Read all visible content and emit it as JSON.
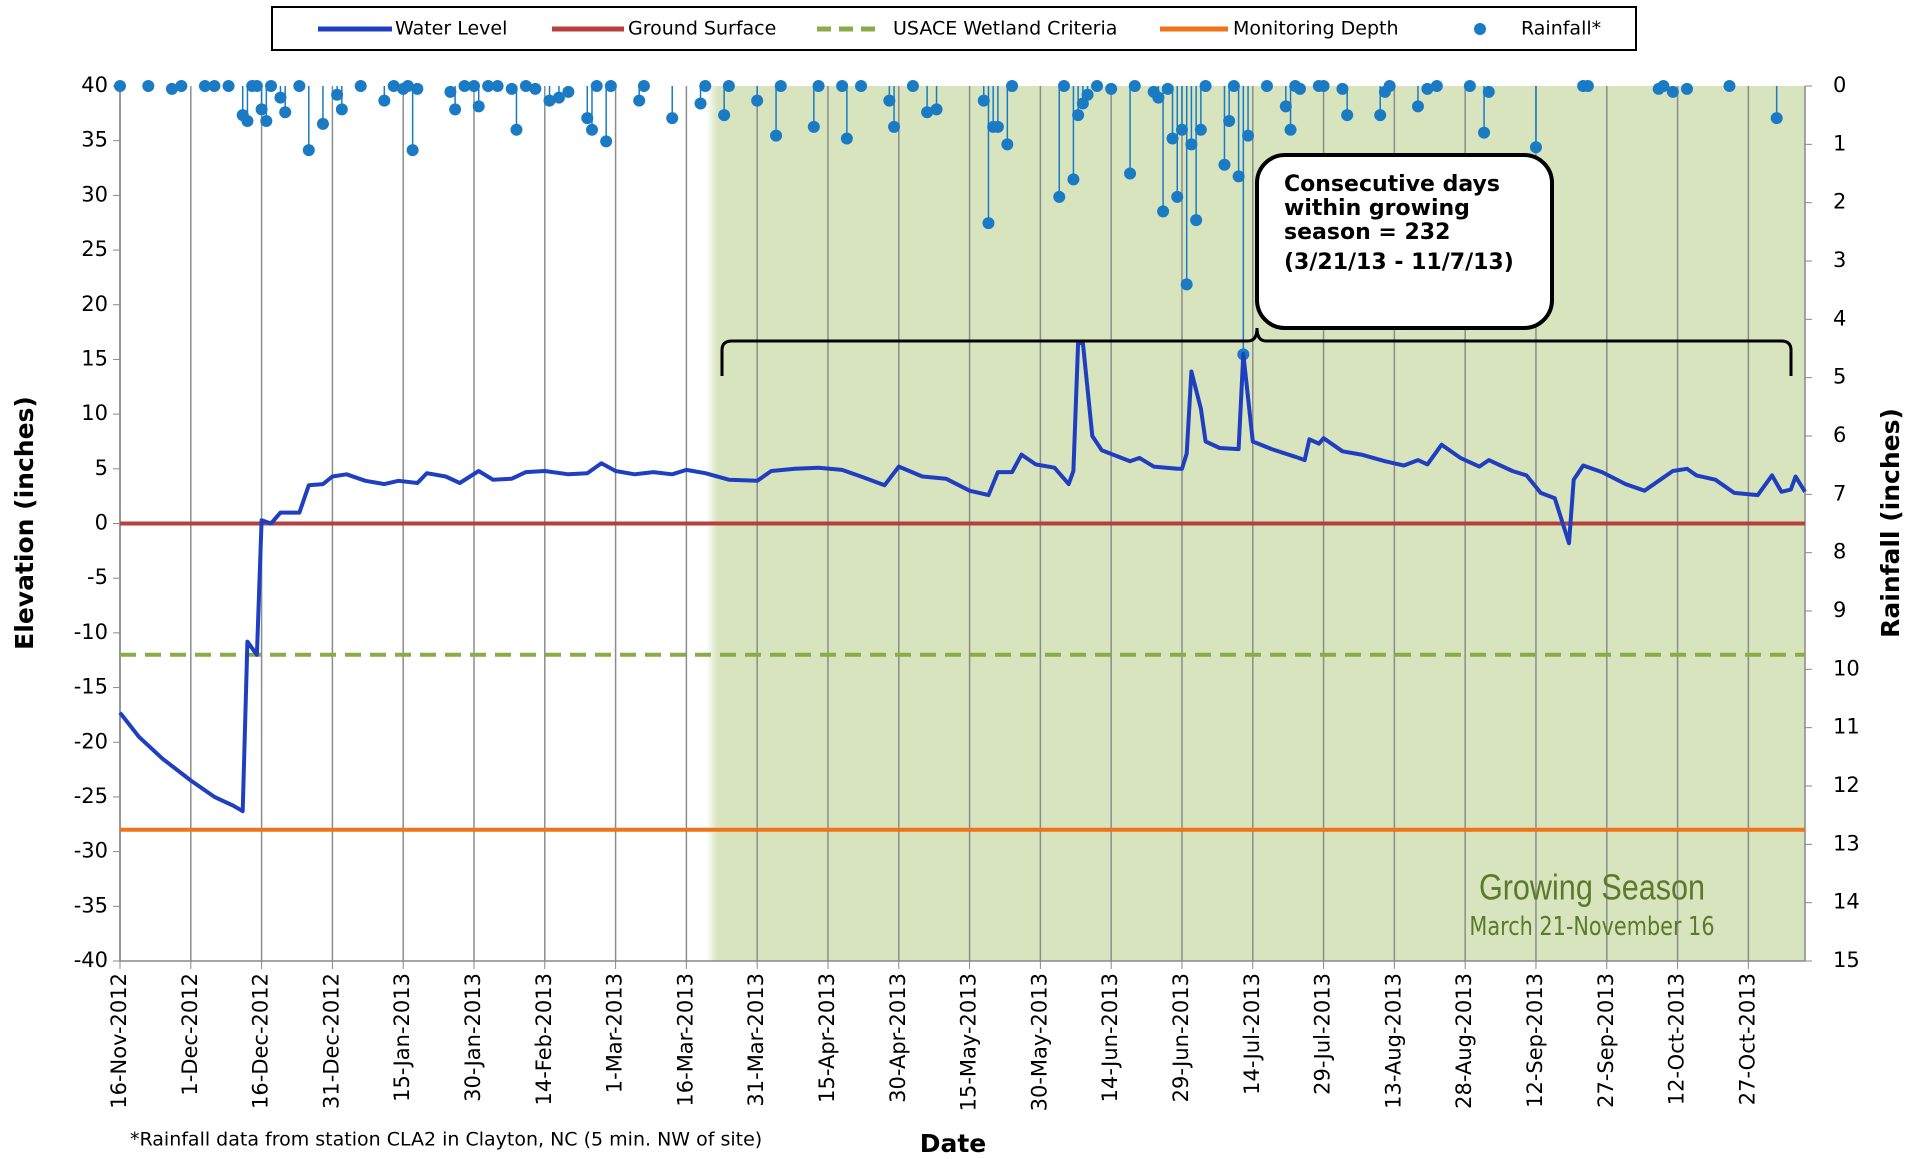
{
  "chart_data": {
    "type": "line",
    "xlabel": "Date",
    "ylabel": "Elevation (inches)",
    "y2label": "Rainfall (inches)",
    "footnote": "*Rainfall data  from station CLA2 in Clayton, NC (5 min. NW of site)",
    "annotation": [
      "Consecutive days",
      "within growing",
      "season = 232",
      "(3/21/13 - 11/7/13)"
    ],
    "season_label": "Growing Season",
    "season_sublabel": "March 21-November 16",
    "xlim": [
      "2012-11-16",
      "2013-11-08"
    ],
    "xticks": [
      {
        "value": "2012-11-16",
        "label": "16-Nov-2012"
      },
      {
        "value": "2012-12-01",
        "label": "1-Dec-2012"
      },
      {
        "value": "2012-12-16",
        "label": "16-Dec-2012"
      },
      {
        "value": "2012-12-31",
        "label": "31-Dec-2012"
      },
      {
        "value": "2013-01-15",
        "label": "15-Jan-2013"
      },
      {
        "value": "2013-01-30",
        "label": "30-Jan-2013"
      },
      {
        "value": "2013-02-14",
        "label": "14-Feb-2013"
      },
      {
        "value": "2013-03-01",
        "label": "1-Mar-2013"
      },
      {
        "value": "2013-03-16",
        "label": "16-Mar-2013"
      },
      {
        "value": "2013-03-31",
        "label": "31-Mar-2013"
      },
      {
        "value": "2013-04-15",
        "label": "15-Apr-2013"
      },
      {
        "value": "2013-04-30",
        "label": "30-Apr-2013"
      },
      {
        "value": "2013-05-15",
        "label": "15-May-2013"
      },
      {
        "value": "2013-05-30",
        "label": "30-May-2013"
      },
      {
        "value": "2013-06-14",
        "label": "14-Jun-2013"
      },
      {
        "value": "2013-06-29",
        "label": "29-Jun-2013"
      },
      {
        "value": "2013-07-14",
        "label": "14-Jul-2013"
      },
      {
        "value": "2013-07-29",
        "label": "29-Jul-2013"
      },
      {
        "value": "2013-08-13",
        "label": "13-Aug-2013"
      },
      {
        "value": "2013-08-28",
        "label": "28-Aug-2013"
      },
      {
        "value": "2013-09-12",
        "label": "12-Sep-2013"
      },
      {
        "value": "2013-09-27",
        "label": "27-Sep-2013"
      },
      {
        "value": "2013-10-12",
        "label": "12-Oct-2013"
      },
      {
        "value": "2013-10-27",
        "label": "27-Oct-2013"
      }
    ],
    "ylim": [
      -40,
      40
    ],
    "yticks": [
      -40,
      -35,
      -30,
      -25,
      -20,
      -15,
      -10,
      -5,
      0,
      5,
      10,
      15,
      20,
      25,
      30,
      35,
      40
    ],
    "y2lim": [
      15,
      0
    ],
    "y2ticks": [
      0,
      1,
      2,
      3,
      4,
      5,
      6,
      7,
      8,
      9,
      10,
      11,
      12,
      13,
      14,
      15
    ],
    "grid": true,
    "series": [
      {
        "name": "Water Level",
        "kind": "line",
        "color": "#1f3fc0",
        "x": [
          "2012-11-16",
          "2012-11-20",
          "2012-11-25",
          "2012-12-01",
          "2012-12-06",
          "2012-12-10",
          "2012-12-12",
          "2012-12-13",
          "2012-12-15",
          "2012-12-16",
          "2012-12-18",
          "2012-12-20",
          "2012-12-24",
          "2012-12-26",
          "2012-12-29",
          "2012-12-31",
          "2013-01-03",
          "2013-01-07",
          "2013-01-11",
          "2013-01-14",
          "2013-01-18",
          "2013-01-20",
          "2013-01-24",
          "2013-01-27",
          "2013-01-31",
          "2013-02-03",
          "2013-02-07",
          "2013-02-10",
          "2013-02-14",
          "2013-02-19",
          "2013-02-23",
          "2013-02-26",
          "2013-03-01",
          "2013-03-05",
          "2013-03-09",
          "2013-03-13",
          "2013-03-16",
          "2013-03-20",
          "2013-03-25",
          "2013-03-31",
          "2013-04-03",
          "2013-04-08",
          "2013-04-13",
          "2013-04-18",
          "2013-04-22",
          "2013-04-27",
          "2013-04-30",
          "2013-05-05",
          "2013-05-10",
          "2013-05-15",
          "2013-05-19",
          "2013-05-21",
          "2013-05-24",
          "2013-05-26",
          "2013-05-29",
          "2013-06-02",
          "2013-06-05",
          "2013-06-06",
          "2013-06-07",
          "2013-06-08",
          "2013-06-10",
          "2013-06-12",
          "2013-06-18",
          "2013-06-20",
          "2013-06-23",
          "2013-06-28",
          "2013-06-29",
          "2013-06-30",
          "2013-07-01",
          "2013-07-03",
          "2013-07-04",
          "2013-07-07",
          "2013-07-11",
          "2013-07-12",
          "2013-07-14",
          "2013-07-18",
          "2013-07-23",
          "2013-07-25",
          "2013-07-26",
          "2013-07-28",
          "2013-07-29",
          "2013-08-02",
          "2013-08-06",
          "2013-08-11",
          "2013-08-15",
          "2013-08-18",
          "2013-08-20",
          "2013-08-23",
          "2013-08-27",
          "2013-08-31",
          "2013-09-02",
          "2013-09-07",
          "2013-09-10",
          "2013-09-13",
          "2013-09-16",
          "2013-09-19",
          "2013-09-20",
          "2013-09-22",
          "2013-09-26",
          "2013-10-01",
          "2013-10-05",
          "2013-10-08",
          "2013-10-11",
          "2013-10-14",
          "2013-10-16",
          "2013-10-20",
          "2013-10-24",
          "2013-10-29",
          "2013-11-01",
          "2013-11-03",
          "2013-11-05",
          "2013-11-06",
          "2013-11-08"
        ],
        "values": [
          -17.3,
          -19.5,
          -21.5,
          -23.5,
          -25,
          -25.8,
          -26.3,
          -10.8,
          -12,
          0.3,
          0,
          1,
          1,
          3.5,
          3.6,
          4.3,
          4.5,
          3.9,
          3.6,
          3.9,
          3.7,
          4.6,
          4.3,
          3.7,
          4.8,
          4.0,
          4.1,
          4.7,
          4.8,
          4.5,
          4.6,
          5.5,
          4.8,
          4.5,
          4.7,
          4.5,
          4.9,
          4.6,
          4.0,
          3.9,
          4.8,
          5.0,
          5.1,
          4.9,
          4.3,
          3.5,
          5.2,
          4.3,
          4.1,
          3.0,
          2.6,
          4.7,
          4.7,
          6.3,
          5.4,
          5.1,
          3.6,
          4.8,
          16.5,
          16.5,
          8,
          6.7,
          5.7,
          6.0,
          5.2,
          5.0,
          5.0,
          6.4,
          13.9,
          10.5,
          7.5,
          6.9,
          6.8,
          15.5,
          7.5,
          6.8,
          6.1,
          5.8,
          7.7,
          7.3,
          7.8,
          6.6,
          6.3,
          5.7,
          5.3,
          5.8,
          5.4,
          7.2,
          6.0,
          5.2,
          5.8,
          4.8,
          4.4,
          2.8,
          2.3,
          -1.8,
          4.0,
          5.3,
          4.7,
          3.6,
          3.0,
          3.9,
          4.8,
          5.0,
          4.4,
          4.0,
          2.8,
          2.6,
          4.4,
          2.9,
          3.1,
          4.3,
          2.9
        ]
      },
      {
        "name": "Ground Surface",
        "kind": "hline",
        "color": "#b5403c",
        "level": 0
      },
      {
        "name": "USACE Wetland Criteria",
        "kind": "hline",
        "color": "#8aac48",
        "dashed": true,
        "level": -12
      },
      {
        "name": "Monitoring Depth",
        "kind": "hline",
        "color": "#ef7318",
        "level": -28
      },
      {
        "name": "Rainfall*",
        "kind": "scatter",
        "axis": "y2",
        "color": "#1a7bc4",
        "x": [
          "2012-11-16",
          "2012-11-22",
          "2012-11-27",
          "2012-11-29",
          "2012-12-04",
          "2012-12-06",
          "2012-12-09",
          "2012-12-12",
          "2012-12-13",
          "2012-12-14",
          "2012-12-15",
          "2012-12-16",
          "2012-12-17",
          "2012-12-18",
          "2012-12-20",
          "2012-12-21",
          "2012-12-24",
          "2012-12-26",
          "2012-12-29",
          "2013-01-01",
          "2013-01-02",
          "2013-01-06",
          "2013-01-11",
          "2013-01-13",
          "2013-01-15",
          "2013-01-16",
          "2013-01-17",
          "2013-01-18",
          "2013-01-25",
          "2013-01-26",
          "2013-01-28",
          "2013-01-30",
          "2013-01-31",
          "2013-02-02",
          "2013-02-04",
          "2013-02-07",
          "2013-02-08",
          "2013-02-10",
          "2013-02-12",
          "2013-02-15",
          "2013-02-17",
          "2013-02-19",
          "2013-02-23",
          "2013-02-24",
          "2013-02-25",
          "2013-02-27",
          "2013-02-28",
          "2013-03-06",
          "2013-03-07",
          "2013-03-13",
          "2013-03-19",
          "2013-03-20",
          "2013-03-24",
          "2013-03-25",
          "2013-03-31",
          "2013-04-04",
          "2013-04-05",
          "2013-04-12",
          "2013-04-13",
          "2013-04-18",
          "2013-04-19",
          "2013-04-22",
          "2013-04-28",
          "2013-04-29",
          "2013-05-03",
          "2013-05-06",
          "2013-05-08",
          "2013-05-18",
          "2013-05-19",
          "2013-05-20",
          "2013-05-21",
          "2013-05-23",
          "2013-05-24",
          "2013-06-03",
          "2013-06-04",
          "2013-06-06",
          "2013-06-07",
          "2013-06-08",
          "2013-06-09",
          "2013-06-11",
          "2013-06-14",
          "2013-06-18",
          "2013-06-19",
          "2013-06-23",
          "2013-06-24",
          "2013-06-25",
          "2013-06-26",
          "2013-06-27",
          "2013-06-28",
          "2013-06-29",
          "2013-06-30",
          "2013-07-01",
          "2013-07-02",
          "2013-07-03",
          "2013-07-04",
          "2013-07-08",
          "2013-07-09",
          "2013-07-10",
          "2013-07-11",
          "2013-07-12",
          "2013-07-13",
          "2013-07-17",
          "2013-07-21",
          "2013-07-22",
          "2013-07-23",
          "2013-07-24",
          "2013-07-28",
          "2013-07-29",
          "2013-08-02",
          "2013-08-03",
          "2013-08-10",
          "2013-08-11",
          "2013-08-12",
          "2013-08-18",
          "2013-08-20",
          "2013-08-22",
          "2013-08-29",
          "2013-09-01",
          "2013-09-02",
          "2013-09-12",
          "2013-09-22",
          "2013-09-23",
          "2013-10-08",
          "2013-10-09",
          "2013-10-11",
          "2013-10-14",
          "2013-10-23",
          "2013-11-02"
        ],
        "values": [
          0,
          0,
          0.05,
          0,
          0,
          0,
          0,
          0.5,
          0.6,
          0,
          0,
          0.4,
          0.6,
          0,
          0.2,
          0.45,
          0,
          1.1,
          0.65,
          0.15,
          0.4,
          0,
          0.25,
          0,
          0.05,
          0,
          1.1,
          0.05,
          0.1,
          0.4,
          0,
          0,
          0.35,
          0,
          0,
          0.05,
          0.75,
          0,
          0.05,
          0.25,
          0.2,
          0.1,
          0.55,
          0.75,
          0,
          0.95,
          0,
          0.25,
          0,
          0.55,
          0.3,
          0,
          0.5,
          0,
          0.25,
          0.85,
          0,
          0.7,
          0,
          0,
          0.9,
          0,
          0.25,
          0.7,
          0,
          0.45,
          0.4,
          0.25,
          2.35,
          0.7,
          0.7,
          1.0,
          0,
          1.9,
          0,
          1.6,
          0.5,
          0.3,
          0.15,
          0,
          0.05,
          1.5,
          0,
          0.1,
          0.2,
          2.15,
          0.05,
          0.9,
          1.9,
          0.75,
          3.4,
          1.0,
          2.3,
          0.75,
          0,
          1.35,
          0.6,
          0,
          1.55,
          4.6,
          0.85,
          0,
          0.35,
          0.75,
          0,
          0.05,
          0,
          0,
          0.05,
          0.5,
          0.5,
          0.1,
          0,
          0.35,
          0.05,
          0,
          0,
          0.8,
          0.1,
          1.05,
          0,
          0,
          0.05,
          0,
          0.1,
          0.05,
          0,
          0.55
        ]
      }
    ]
  }
}
